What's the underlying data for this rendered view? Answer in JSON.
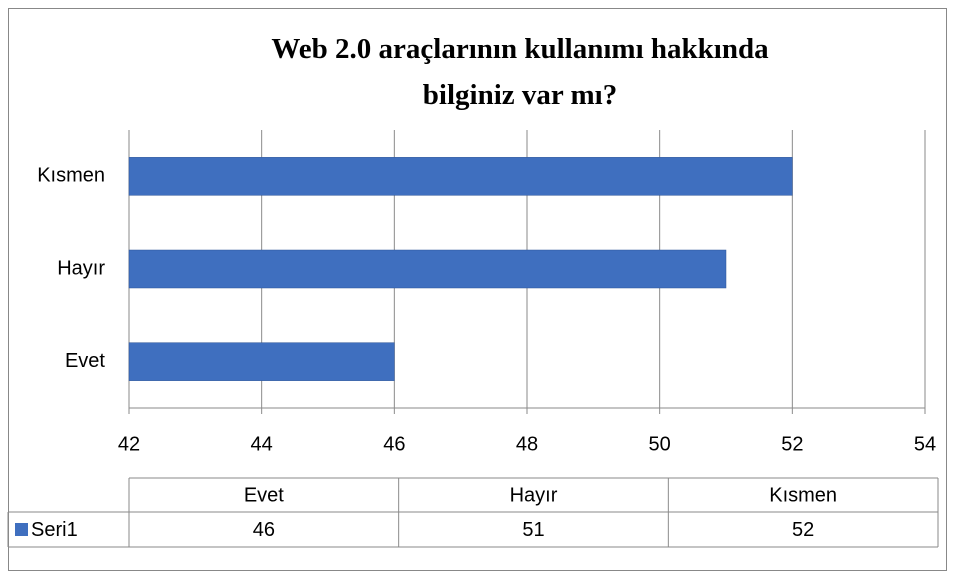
{
  "chart_data": {
    "type": "bar",
    "orientation": "horizontal",
    "title": "Web 2.0 araçlarının kullanımı hakkında bilginiz var mı?",
    "categories": [
      "Evet",
      "Hayır",
      "Kısmen"
    ],
    "series": [
      {
        "name": "Seri1",
        "color": "#3f6fbf",
        "values": [
          46,
          51,
          52
        ]
      }
    ],
    "xlim": [
      42,
      54
    ],
    "xticks": [
      42,
      44,
      46,
      48,
      50,
      52,
      54
    ],
    "grid": true,
    "data_table": true
  }
}
